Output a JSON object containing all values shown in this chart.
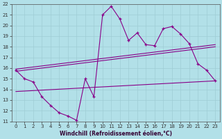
{
  "xlabel": "Windchill (Refroidissement éolien,°C)",
  "bg_color": "#b2e0e8",
  "line_color": "#880088",
  "xlim": [
    -0.5,
    23.5
  ],
  "ylim": [
    11,
    22
  ],
  "xticks": [
    0,
    1,
    2,
    3,
    4,
    5,
    6,
    7,
    8,
    9,
    10,
    11,
    12,
    13,
    14,
    15,
    16,
    17,
    18,
    19,
    20,
    21,
    22,
    23
  ],
  "yticks": [
    11,
    12,
    13,
    14,
    15,
    16,
    17,
    18,
    19,
    20,
    21,
    22
  ],
  "series_main_x": [
    0,
    1,
    2,
    3,
    4,
    5,
    6,
    7,
    8,
    9,
    10,
    11,
    12,
    13,
    14,
    15,
    16,
    17,
    18,
    19,
    20,
    21,
    22,
    23
  ],
  "series_main_y": [
    15.8,
    15.0,
    14.7,
    13.3,
    12.5,
    11.8,
    11.5,
    11.1,
    15.0,
    13.3,
    21.0,
    21.8,
    20.6,
    18.6,
    19.3,
    18.2,
    18.1,
    19.7,
    19.9,
    19.2,
    18.3,
    16.4,
    15.8,
    14.8
  ],
  "line1_x": [
    0,
    23
  ],
  "line1_y": [
    15.7,
    18.0
  ],
  "line2_x": [
    0,
    23
  ],
  "line2_y": [
    15.9,
    18.2
  ],
  "line3_x": [
    0,
    23
  ],
  "line3_y": [
    13.8,
    14.8
  ]
}
